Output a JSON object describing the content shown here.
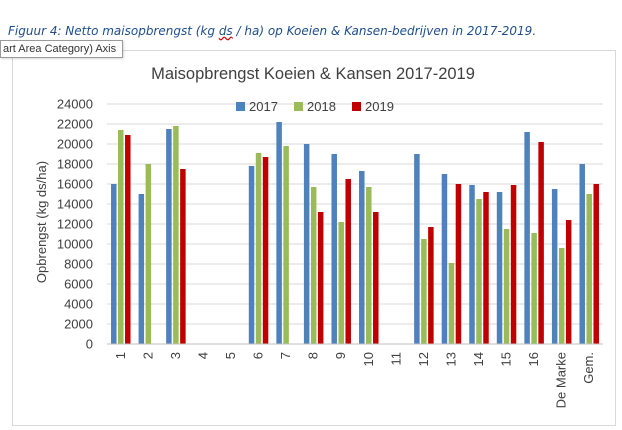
{
  "caption": {
    "prefix": "Figuur 4: Netto maisopbrengst (kg ",
    "squiggle": "ds",
    "suffix": " / ha) op Koeien & Kansen-bedrijven in 2017-2019."
  },
  "tooltip": "art Area  Category) Axis",
  "colors": {
    "2017": "#4f81bd",
    "2018": "#9bbb59",
    "2019": "#c00000",
    "grid": "#d9d9d9",
    "axis_text": "#404040"
  },
  "chart_data": {
    "type": "bar",
    "title": "Maisopbrengst Koeien & Kansen 2017-2019",
    "ylabel": "Opbrengst (kg ds/ha)",
    "xlabel": "",
    "ylim": [
      0,
      24000
    ],
    "yticks": [
      0,
      2000,
      4000,
      6000,
      8000,
      10000,
      12000,
      14000,
      16000,
      18000,
      20000,
      22000,
      24000
    ],
    "grid": true,
    "legend_position": "top",
    "categories": [
      "1",
      "2",
      "3",
      "4",
      "5",
      "6",
      "7",
      "8",
      "9",
      "10",
      "11",
      "12",
      "13",
      "14",
      "15",
      "16",
      "De Marke",
      "Gem."
    ],
    "series": [
      {
        "name": "2017",
        "color": "#4f81bd",
        "values": [
          16000,
          15000,
          21500,
          null,
          null,
          17800,
          22200,
          20000,
          19000,
          17300,
          null,
          19000,
          17000,
          15900,
          15200,
          21200,
          15500,
          18000
        ]
      },
      {
        "name": "2018",
        "color": "#9bbb59",
        "values": [
          21400,
          18000,
          21800,
          null,
          null,
          19100,
          19800,
          15700,
          12200,
          15700,
          null,
          10500,
          8100,
          14500,
          11500,
          11100,
          9600,
          15000
        ]
      },
      {
        "name": "2019",
        "color": "#c00000",
        "values": [
          20900,
          null,
          17500,
          null,
          null,
          18700,
          null,
          13200,
          16500,
          13200,
          null,
          11700,
          16000,
          15200,
          15900,
          20200,
          12400,
          16000
        ]
      }
    ]
  }
}
